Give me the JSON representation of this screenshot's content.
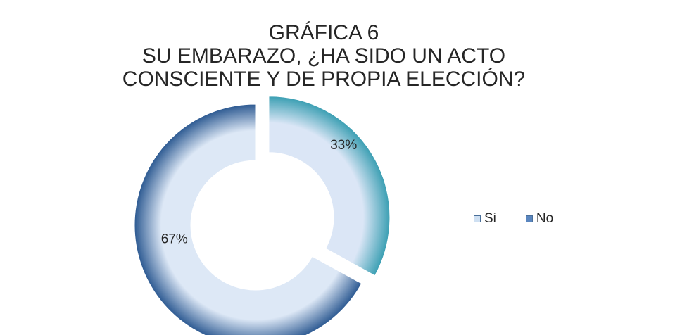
{
  "chart_data": {
    "type": "pie",
    "title": [
      "GRÁFICA 6",
      "SU EMBARAZO, ¿HA SIDO UN ACTO",
      "CONSCIENTE Y DE PROPIA ELECCIÓN?"
    ],
    "categories": [
      "Si",
      "No"
    ],
    "values": [
      33,
      67
    ],
    "labels": [
      "33%",
      "67%"
    ],
    "legend_position": "right",
    "colors": {
      "Si": {
        "outer": "#3b9fb3",
        "inner": "#dbe6f6"
      },
      "No": {
        "outer": "#2d5a92",
        "inner": "#dde8f6"
      }
    }
  }
}
